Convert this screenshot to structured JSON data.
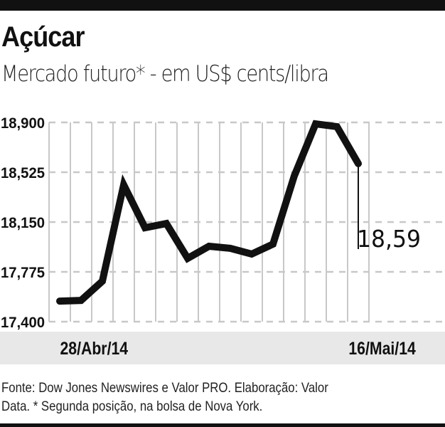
{
  "chart_data": {
    "type": "line",
    "title": "Açúcar",
    "subtitle": "Mercado futuro* - em US$ cents/libra",
    "xlabel": "",
    "ylabel": "",
    "x_tick_labels": [
      "28/Abr/14",
      "16/Mai/14"
    ],
    "y_tick_labels": [
      "18,900",
      "18,525",
      "18,150",
      "17,775",
      "17,400"
    ],
    "y_ticks": [
      18900,
      18525,
      18150,
      17775,
      17400
    ],
    "ylim": [
      17400,
      18900
    ],
    "grid": true,
    "values": [
      17555,
      17560,
      17705,
      18430,
      18107,
      18139,
      17877,
      17968,
      17952,
      17909,
      17984,
      18498,
      18889,
      18868,
      18590
    ],
    "annotation": "18,59",
    "line_color": "#111111",
    "grid_color": "#c8c8c8"
  },
  "footer": {
    "line1": "Fonte: Dow Jones Newswires e Valor PRO. Elaboração: Valor",
    "line2": "Data. * Segunda posição, na bolsa de Nova York."
  }
}
